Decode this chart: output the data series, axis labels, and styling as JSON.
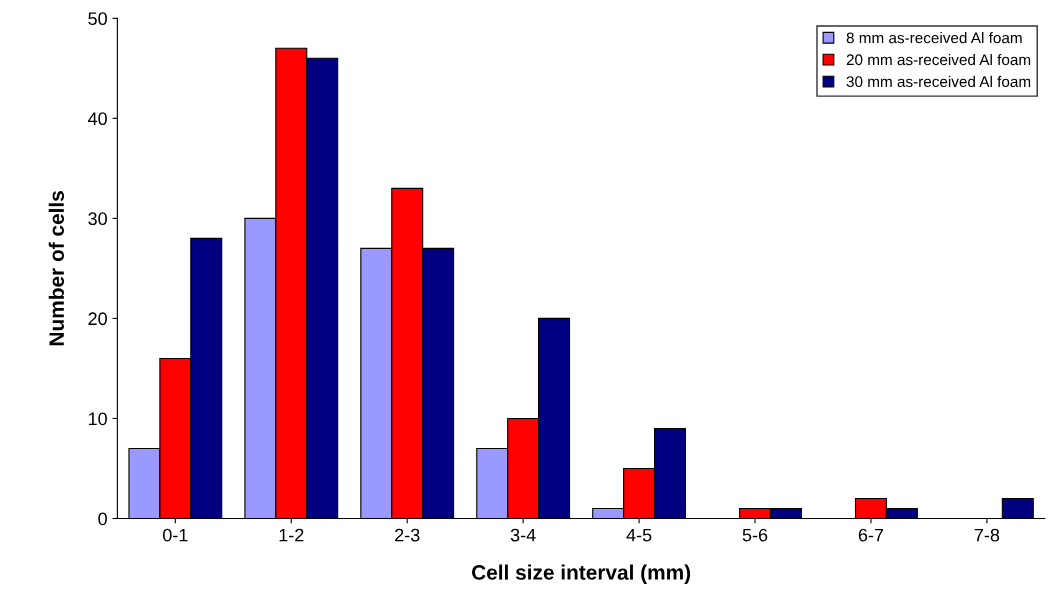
{
  "chart_data": {
    "type": "bar",
    "xlabel": "Cell size interval (mm)",
    "ylabel": "Number of cells",
    "categories": [
      "0-1",
      "1-2",
      "2-3",
      "3-4",
      "4-5",
      "5-6",
      "6-7",
      "7-8"
    ],
    "series": [
      {
        "name": "8 mm as-received Al foam",
        "color": "#9999ff",
        "values": [
          7,
          30,
          27,
          7,
          1,
          0,
          0,
          0
        ]
      },
      {
        "name": "20 mm as-received Al foam",
        "color": "#ff0000",
        "values": [
          16,
          47,
          33,
          10,
          5,
          1,
          2,
          0
        ]
      },
      {
        "name": "30 mm as-received Al foam",
        "color": "#000080",
        "values": [
          28,
          46,
          27,
          20,
          9,
          1,
          1,
          2
        ]
      }
    ],
    "ylim": [
      0,
      50
    ],
    "yticks": [
      0,
      10,
      20,
      30,
      40,
      50
    ],
    "grid": false,
    "legend": "top right"
  }
}
